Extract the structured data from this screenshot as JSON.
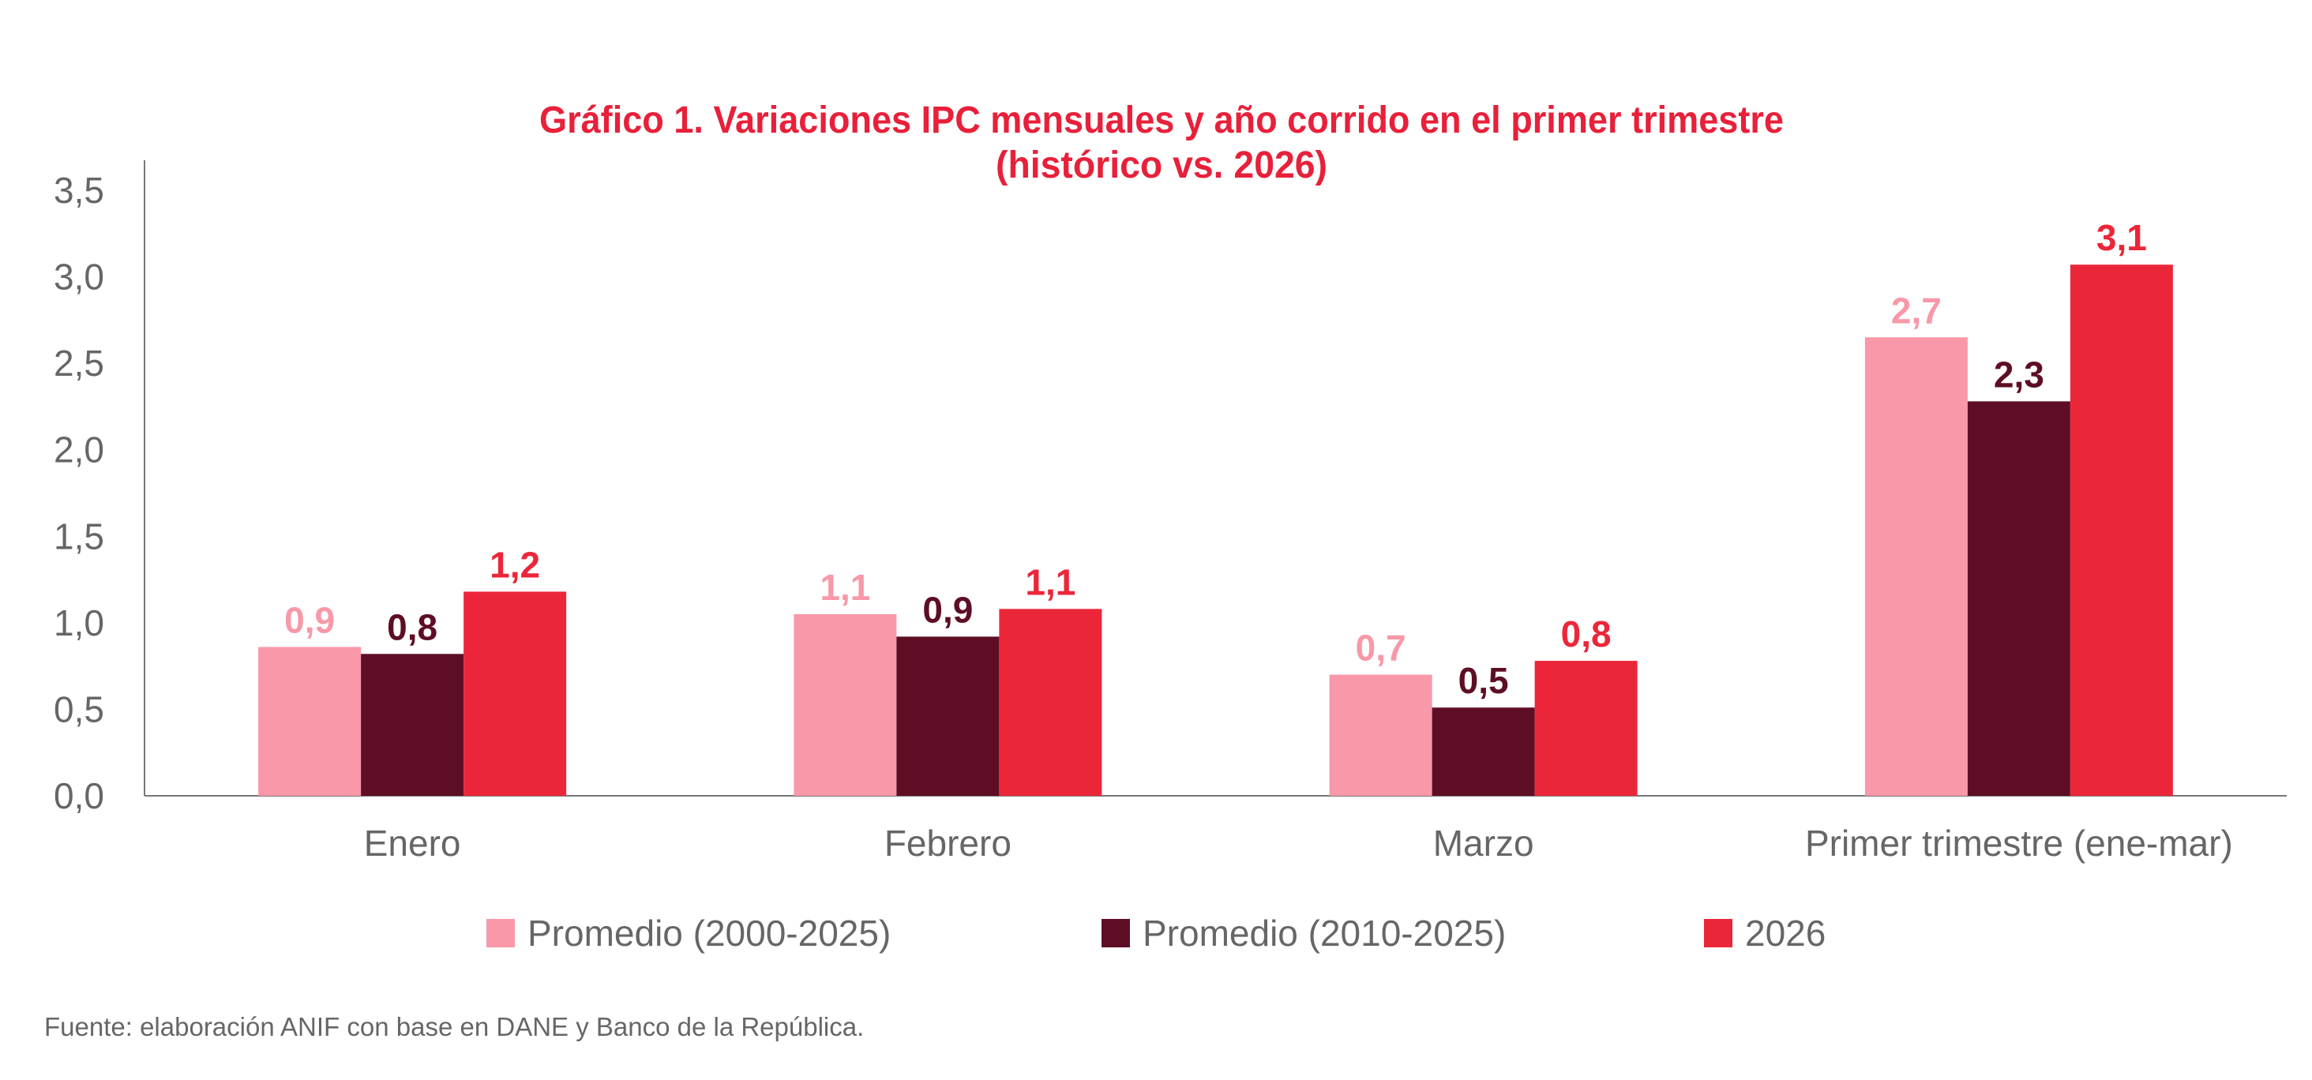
{
  "chart_data": {
    "type": "bar",
    "title": "Gráfico 1. Variaciones IPC mensuales y año corrido en el primer trimestre",
    "subtitle": "(histórico vs. 2026)",
    "xlabel": "",
    "ylabel": "",
    "ylim": [
      0,
      3.5
    ],
    "yticks": [
      "0,0",
      "0,5",
      "1,0",
      "1,5",
      "2,0",
      "2,5",
      "3,0",
      "3,5"
    ],
    "grid": false,
    "legend_position": "bottom",
    "categories": [
      "Enero",
      "Febrero",
      "Marzo",
      "Primer trimestre (ene-mar)"
    ],
    "series": [
      {
        "name": "Promedio (2000-2025)",
        "color": "#F898A8",
        "values": [
          0.86,
          1.05,
          0.7,
          2.65
        ],
        "labels": [
          "0,9",
          "1,1",
          "0,7",
          "2,7"
        ]
      },
      {
        "name": "Promedio (2010-2025)",
        "color": "#5E0E24",
        "values": [
          0.82,
          0.92,
          0.51,
          2.28
        ],
        "labels": [
          "0,8",
          "0,9",
          "0,5",
          "2,3"
        ]
      },
      {
        "name": "2026",
        "color": "#EC2639",
        "values": [
          1.18,
          1.08,
          0.78,
          3.07
        ],
        "labels": [
          "1,2",
          "1,1",
          "0,8",
          "3,1"
        ]
      }
    ],
    "title_color": "#E8203A",
    "source": "Fuente: elaboración ANIF con base en DANE y Banco de la República."
  }
}
